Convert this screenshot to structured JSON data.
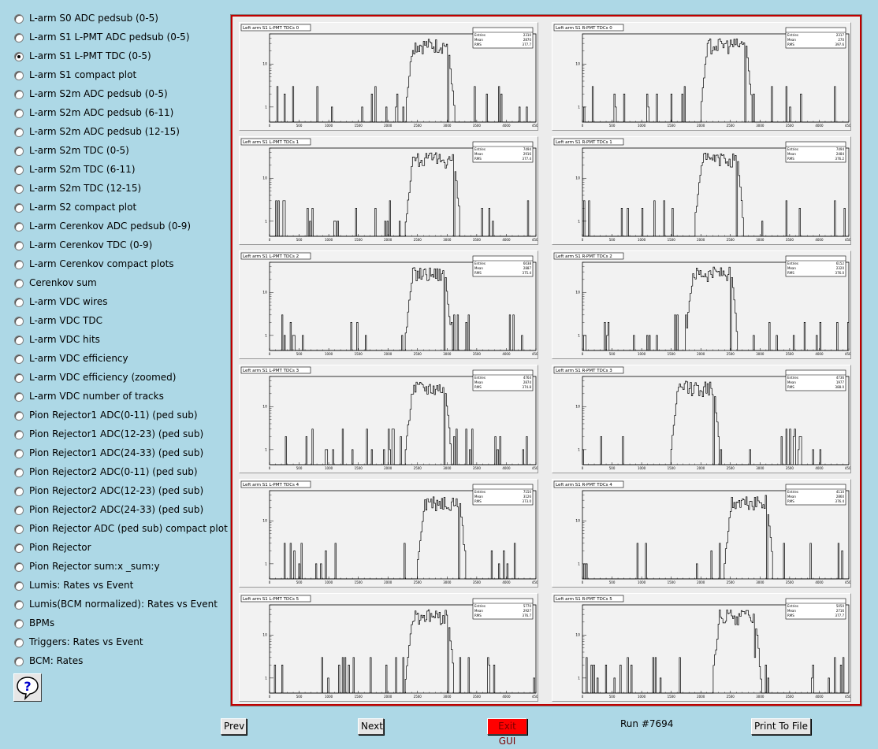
{
  "menu": {
    "selected_index": 2,
    "items": [
      "L-arm S0 ADC pedsub (0-5)",
      "L-arm S1 L-PMT ADC pedsub (0-5)",
      "L-arm S1 L-PMT TDC (0-5)",
      "L-arm S1 compact plot",
      "L-arm S2m ADC pedsub (0-5)",
      "L-arm S2m ADC pedsub (6-11)",
      "L-arm S2m ADC pedsub (12-15)",
      "L-arm S2m TDC (0-5)",
      "L-arm S2m TDC (6-11)",
      "L-arm S2m TDC (12-15)",
      "L-arm S2 compact plot",
      "L-arm Cerenkov ADC pedsub (0-9)",
      "L-arm Cerenkov TDC (0-9)",
      "L-arm Cerenkov compact plots",
      "Cerenkov sum",
      "L-arm VDC wires",
      "L-arm VDC TDC",
      "L-arm VDC hits",
      "L-arm VDC efficiency",
      "L-arm VDC efficiency (zoomed)",
      "L-arm VDC number of tracks",
      "Pion Rejector1 ADC(0-11) (ped sub)",
      "Pion Rejector1 ADC(12-23) (ped sub)",
      "Pion Rejector1 ADC(24-33) (ped sub)",
      "Pion Rejector2 ADC(0-11) (ped sub)",
      "Pion Rejector2 ADC(12-23) (ped sub)",
      "Pion Rejector2 ADC(24-33) (ped sub)",
      "Pion Rejector ADC (ped sub) compact plot",
      "Pion Rejector",
      "Pion Rejector sum:x _sum:y",
      "Lumis: Rates vs Event",
      "Lumis(BCM normalized): Rates vs Event",
      "BPMs",
      "Triggers: Rates vs Event",
      "BCM: Rates"
    ]
  },
  "help_icon": "question-mark-icon",
  "buttons": {
    "prev": "Prev",
    "next": "Next",
    "exit": "Exit GUI",
    "print": "Print To File"
  },
  "run_label": "Run #7694",
  "colors": {
    "background": "#add8e6",
    "canvas_border": "#c00000",
    "exit_button": "#ff0000"
  },
  "chart_data": [
    {
      "type": "histogram",
      "title": "Left arm S1 L-PMT TDCs 0",
      "stats": {
        "Entries": "2310",
        "Mean": "2870",
        "RMS": "377.7"
      },
      "xlim": [
        0,
        4500
      ],
      "yscale": "log",
      "plateau": [
        2350,
        3050
      ],
      "x_ticks": [
        "0",
        "500",
        "1000",
        "1500",
        "2000",
        "2500",
        "3000",
        "3500",
        "4000",
        "4500"
      ],
      "y_ticks": [
        "1",
        "10"
      ]
    },
    {
      "type": "histogram",
      "title": "Left arm S1 R-PMT TDCs 0",
      "stats": {
        "Entries": "2317",
        "Mean": "270",
        "RMS": "397.6"
      },
      "xlim": [
        0,
        4500
      ],
      "yscale": "log",
      "plateau": [
        2050,
        2800
      ],
      "x_ticks": [
        "0",
        "500",
        "1000",
        "1500",
        "2000",
        "2500",
        "3000",
        "3500",
        "4000",
        "4500"
      ],
      "y_ticks": [
        "1",
        "10"
      ]
    },
    {
      "type": "histogram",
      "title": "Left arm S1 L-PMT TDCs 1",
      "stats": {
        "Entries": "7494",
        "Mean": "2916",
        "RMS": "377.4"
      },
      "xlim": [
        0,
        4500
      ],
      "yscale": "log",
      "plateau": [
        2350,
        3150
      ],
      "x_ticks": [
        "0",
        "500",
        "1000",
        "1500",
        "2000",
        "2500",
        "3000",
        "3500",
        "4000",
        "4500"
      ],
      "y_ticks": [
        "1",
        "10"
      ]
    },
    {
      "type": "histogram",
      "title": "Left arm S1 R-PMT TDCs 1",
      "stats": {
        "Entries": "7494",
        "Mean": "2484",
        "RMS": "376.2"
      },
      "xlim": [
        0,
        4500
      ],
      "yscale": "log",
      "plateau": [
        1950,
        2650
      ],
      "x_ticks": [
        "0",
        "500",
        "1000",
        "1500",
        "2000",
        "2500",
        "3000",
        "3500",
        "4000",
        "4500"
      ],
      "y_ticks": [
        "1",
        "10"
      ]
    },
    {
      "type": "histogram",
      "title": "Left arm S1 L-PMT TDCs 2",
      "stats": {
        "Entries": "6038",
        "Mean": "2887",
        "RMS": "375.4"
      },
      "xlim": [
        0,
        4500
      ],
      "yscale": "log",
      "plateau": [
        2350,
        3000
      ],
      "x_ticks": [
        "0",
        "500",
        "1000",
        "1500",
        "2000",
        "2500",
        "3000",
        "3500",
        "4000",
        "4500"
      ],
      "y_ticks": [
        "1",
        "10"
      ]
    },
    {
      "type": "histogram",
      "title": "Left arm S1 R-PMT TDCs 2",
      "stats": {
        "Entries": "6152",
        "Mean": "2320",
        "RMS": "376.0"
      },
      "xlim": [
        0,
        4500
      ],
      "yscale": "log",
      "plateau": [
        1800,
        2550
      ],
      "x_ticks": [
        "0",
        "500",
        "1000",
        "1500",
        "2000",
        "2500",
        "3000",
        "3500",
        "4000",
        "4500"
      ],
      "y_ticks": [
        "1",
        "10"
      ]
    },
    {
      "type": "histogram",
      "title": "Left arm S1 L-PMT TDCs 3",
      "stats": {
        "Entries": "4764",
        "Mean": "2874",
        "RMS": "374.8"
      },
      "xlim": [
        0,
        4500
      ],
      "yscale": "log",
      "plateau": [
        2350,
        3000
      ],
      "x_ticks": [
        "0",
        "500",
        "1000",
        "1500",
        "2000",
        "2500",
        "3000",
        "3500",
        "4000",
        "4500"
      ],
      "y_ticks": [
        "1",
        "10"
      ]
    },
    {
      "type": "histogram",
      "title": "Left arm S1 R-PMT TDCs 3",
      "stats": {
        "Entries": "4736",
        "Mean": "1977",
        "RMS": "388.0"
      },
      "xlim": [
        0,
        4500
      ],
      "yscale": "log",
      "plateau": [
        1550,
        2250
      ],
      "x_ticks": [
        "0",
        "500",
        "1000",
        "1500",
        "2000",
        "2500",
        "3000",
        "3500",
        "4000",
        "4500"
      ],
      "y_ticks": [
        "1",
        "10"
      ]
    },
    {
      "type": "histogram",
      "title": "Left arm S1 L-PMT TDCs 4",
      "stats": {
        "Entries": "7150",
        "Mean": "3126",
        "RMS": "373.0"
      },
      "xlim": [
        0,
        4500
      ],
      "yscale": "log",
      "plateau": [
        2550,
        3250
      ],
      "x_ticks": [
        "0",
        "500",
        "1000",
        "1500",
        "2000",
        "2500",
        "3000",
        "3500",
        "4000",
        "4500"
      ],
      "y_ticks": [
        "1",
        "10"
      ]
    },
    {
      "type": "histogram",
      "title": "Left arm S1 R-PMT TDCs 4",
      "stats": {
        "Entries": "4110",
        "Mean": "2860",
        "RMS": "376.4"
      },
      "xlim": [
        0,
        4500
      ],
      "yscale": "log",
      "plateau": [
        2450,
        3150
      ],
      "x_ticks": [
        "0",
        "500",
        "1000",
        "1500",
        "2000",
        "2500",
        "3000",
        "3500",
        "4000",
        "4500"
      ],
      "y_ticks": [
        "1",
        "10"
      ]
    },
    {
      "type": "histogram",
      "title": "Left arm S1 L-PMT TDCs 5",
      "stats": {
        "Entries": "5770",
        "Mean": "2927",
        "RMS": "376.7"
      },
      "xlim": [
        0,
        4500
      ],
      "yscale": "log",
      "plateau": [
        2350,
        3050
      ],
      "x_ticks": [
        "0",
        "500",
        "1000",
        "1500",
        "2000",
        "2500",
        "3000",
        "3500",
        "4000",
        "4500"
      ],
      "y_ticks": [
        "1",
        "10"
      ]
    },
    {
      "type": "histogram",
      "title": "Left arm S1 R-PMT TDCs 5",
      "stats": {
        "Entries": "5050",
        "Mean": "2716",
        "RMS": "377.7"
      },
      "xlim": [
        0,
        4500
      ],
      "yscale": "log",
      "plateau": [
        2250,
        2950
      ],
      "x_ticks": [
        "0",
        "500",
        "1000",
        "1500",
        "2000",
        "2500",
        "3000",
        "3500",
        "4000",
        "4500"
      ],
      "y_ticks": [
        "1",
        "10"
      ]
    }
  ]
}
